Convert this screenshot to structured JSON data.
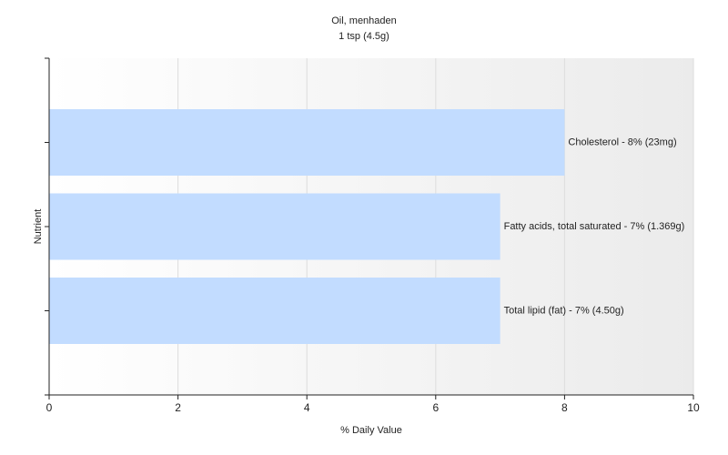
{
  "chart_data": {
    "type": "hbar",
    "title": "Oil, menhaden",
    "subtitle": "1 tsp (4.5g)",
    "x_label": "% Daily Value",
    "y_label": "Nutrient",
    "categories": [
      null,
      null,
      null
    ],
    "values": [
      8,
      7,
      7
    ],
    "value_labels": [
      "Cholesterol - 8% (23mg)",
      "Fatty acids, total saturated - 7% (1.369g)",
      "Total lipid (fat) - 7% (4.50g)"
    ],
    "color": "#c2dcff",
    "xlim": [
      0,
      10
    ],
    "xticks": [
      0,
      2,
      4,
      6,
      8,
      10
    ],
    "grid": true
  }
}
